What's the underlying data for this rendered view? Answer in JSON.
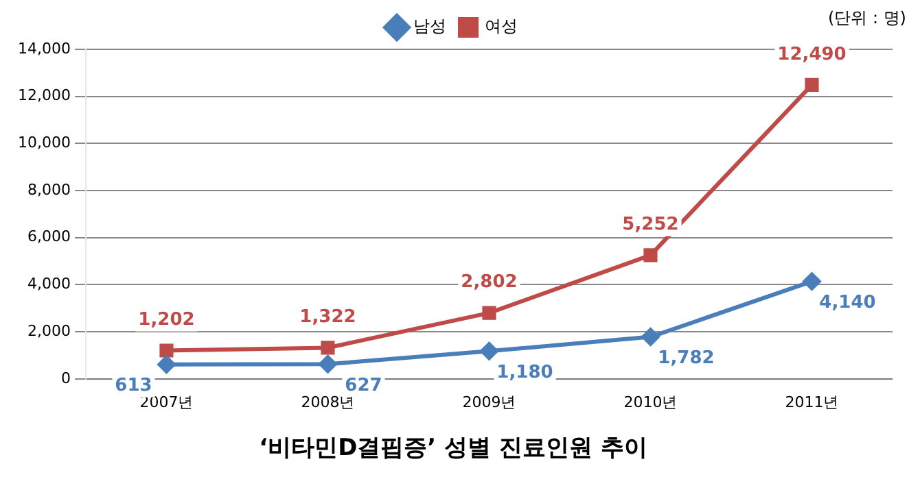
{
  "chart_data": {
    "type": "line",
    "title": "‘비타민D결핍증’ 성별 진료인원 추이",
    "annotations": [
      "(단위 : 명)"
    ],
    "categories": [
      "2007년",
      "2008년",
      "2009년",
      "2010년",
      "2011년"
    ],
    "series": [
      {
        "name": "남성",
        "color": "#4a7ebb",
        "marker": "diamond",
        "values": [
          613,
          627,
          1180,
          1782,
          4140
        ],
        "value_labels": [
          "613",
          "627",
          "1,180",
          "1,782",
          "4,140"
        ]
      },
      {
        "name": "여성",
        "color": "#be4b48",
        "marker": "square",
        "values": [
          1202,
          1322,
          2802,
          5252,
          12490
        ],
        "value_labels": [
          "1,202",
          "1,322",
          "2,802",
          "5,252",
          "12,490"
        ]
      }
    ],
    "ylim": [
      0,
      14000
    ],
    "yticks": [
      0,
      {
        "value": 2000,
        "label": "2,000"
      },
      {
        "value": 4000,
        "label": "4,000"
      },
      {
        "value": 6000,
        "label": "6,000"
      },
      {
        "value": 8000,
        "label": "8,000"
      },
      {
        "value": 10000,
        "label": "10,000"
      },
      {
        "value": 12000,
        "label": "12,000"
      },
      {
        "value": 14000,
        "label": "14,000"
      }
    ],
    "grid": "y",
    "legend": "top",
    "line_style": "solid"
  }
}
